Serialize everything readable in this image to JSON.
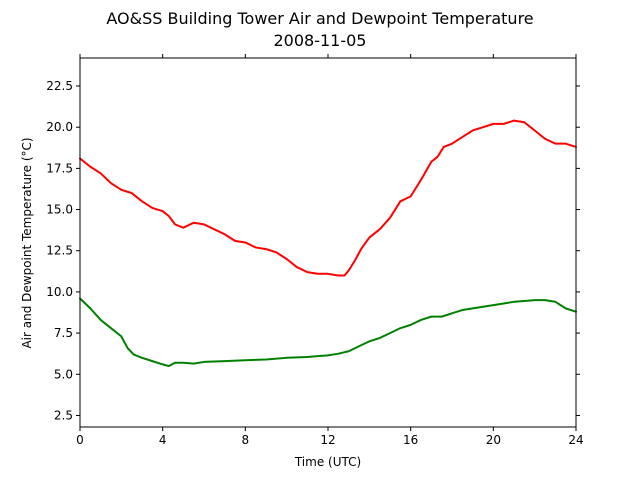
{
  "chart_data": {
    "type": "line",
    "title": "AO&SS Building Tower Air and Dewpoint Temperature",
    "subtitle": "2008-11-05",
    "xlabel": "Time (UTC)",
    "ylabel": "Air and Dewpoint Temperature (°C)",
    "xlim": [
      0,
      24
    ],
    "ylim": [
      1.8,
      24.2
    ],
    "xticks": [
      0,
      4,
      8,
      12,
      16,
      20,
      24
    ],
    "xtick_labels": [
      "0",
      "4",
      "8",
      "12",
      "16",
      "20",
      "24"
    ],
    "yticks": [
      2.5,
      5.0,
      7.5,
      10.0,
      12.5,
      15.0,
      17.5,
      20.0,
      22.5
    ],
    "ytick_labels": [
      "2.5",
      "5.0",
      "7.5",
      "10.0",
      "12.5",
      "15.0",
      "17.5",
      "20.0",
      "22.5"
    ],
    "grid": false,
    "series": [
      {
        "color": "#ff0000",
        "x": [
          0,
          0.5,
          1,
          1.5,
          2,
          2.5,
          3,
          3.5,
          4,
          4.3,
          4.6,
          5,
          5.5,
          6,
          6.5,
          7,
          7.5,
          8,
          8.5,
          9,
          9.5,
          10,
          10.5,
          11,
          11.5,
          12,
          12.5,
          12.8,
          13,
          13.3,
          13.6,
          14,
          14.5,
          15,
          15.5,
          16,
          16.5,
          17,
          17.3,
          17.6,
          18,
          18.5,
          19,
          19.5,
          20,
          20.5,
          21,
          21.5,
          22,
          22.5,
          23,
          23.5,
          24
        ],
        "y": [
          18.1,
          17.6,
          17.2,
          16.6,
          16.2,
          16.0,
          15.5,
          15.1,
          14.9,
          14.6,
          14.1,
          13.9,
          14.2,
          14.1,
          13.8,
          13.5,
          13.1,
          13.0,
          12.7,
          12.6,
          12.4,
          12.0,
          11.5,
          11.2,
          11.1,
          11.1,
          11.0,
          11.0,
          11.3,
          11.9,
          12.6,
          13.3,
          13.8,
          14.5,
          15.5,
          15.8,
          16.8,
          17.9,
          18.2,
          18.8,
          19.0,
          19.4,
          19.8,
          20.0,
          20.2,
          20.2,
          20.4,
          20.3,
          19.8,
          19.3,
          19.0,
          19.0,
          18.8
        ]
      },
      {
        "color": "#008000",
        "x": [
          0,
          0.5,
          1,
          1.5,
          2,
          2.3,
          2.6,
          3,
          3.5,
          4,
          4.3,
          4.6,
          5,
          5.5,
          6,
          7,
          8,
          9,
          10,
          11,
          11.5,
          12,
          12.5,
          13,
          13.5,
          14,
          14.5,
          15,
          15.5,
          16,
          16.5,
          17,
          17.5,
          18,
          18.5,
          19,
          19.5,
          20,
          20.5,
          21,
          21.5,
          22,
          22.5,
          23,
          23.5,
          24
        ],
        "y": [
          9.6,
          9.0,
          8.3,
          7.8,
          7.3,
          6.6,
          6.2,
          6.0,
          5.8,
          5.6,
          5.5,
          5.7,
          5.7,
          5.65,
          5.75,
          5.8,
          5.85,
          5.9,
          6.0,
          6.05,
          6.1,
          6.15,
          6.25,
          6.4,
          6.7,
          7.0,
          7.2,
          7.5,
          7.8,
          8.0,
          8.3,
          8.5,
          8.5,
          8.7,
          8.9,
          9.0,
          9.1,
          9.2,
          9.3,
          9.4,
          9.45,
          9.5,
          9.5,
          9.4,
          9.0,
          8.8
        ]
      }
    ]
  }
}
